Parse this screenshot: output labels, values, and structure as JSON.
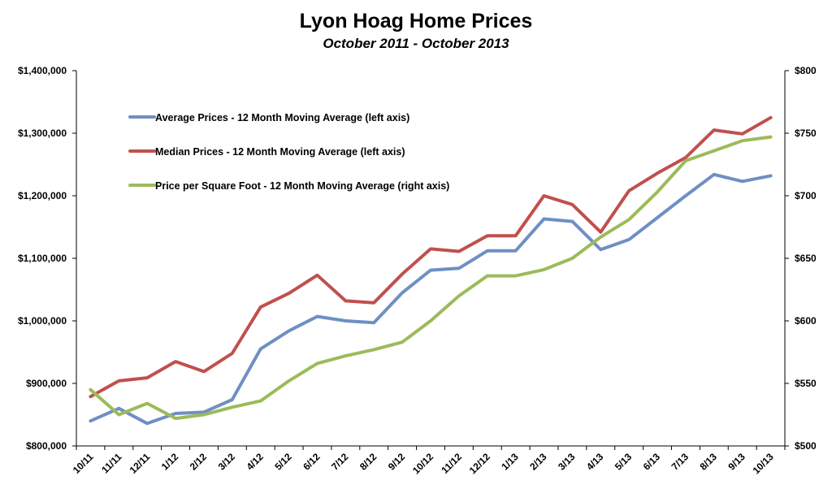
{
  "chart_data": {
    "type": "line",
    "title": "Lyon Hoag Home Prices",
    "subtitle": "October 2011 - October 2013",
    "categories": [
      "10/11",
      "11/11",
      "12/11",
      "1/12",
      "2/12",
      "3/12",
      "4/12",
      "5/12",
      "6/12",
      "7/12",
      "8/12",
      "9/12",
      "10/12",
      "11/12",
      "12/12",
      "1/13",
      "2/13",
      "3/13",
      "4/13",
      "5/13",
      "6/13",
      "7/13",
      "8/13",
      "9/13",
      "10/13"
    ],
    "left_axis": {
      "ylim": [
        800000,
        1400000
      ],
      "ticks": [
        800000,
        900000,
        1000000,
        1100000,
        1200000,
        1300000,
        1400000
      ],
      "tick_labels": [
        "$800,000",
        "$900,000",
        "$1,000,000",
        "$1,100,000",
        "$1,200,000",
        "$1,300,000",
        "$1,400,000"
      ]
    },
    "right_axis": {
      "ylim": [
        500,
        800
      ],
      "ticks": [
        500,
        550,
        600,
        650,
        700,
        750,
        800
      ],
      "tick_labels": [
        "$500",
        "$550",
        "$600",
        "$650",
        "$700",
        "$750",
        "$800"
      ]
    },
    "series": [
      {
        "name": "Average Prices - 12 Month Moving Average (left axis)",
        "axis": "left",
        "color": "#6f8fc4",
        "values": [
          840000,
          860000,
          836000,
          852000,
          854000,
          874000,
          955000,
          984000,
          1007000,
          1000000,
          997000,
          1045000,
          1081000,
          1084000,
          1112000,
          1112000,
          1163000,
          1159000,
          1114000,
          1130000,
          1165000,
          1200000,
          1234000,
          1223000,
          1232000
        ]
      },
      {
        "name": "Median Prices - 12 Month Moving Average (left axis)",
        "axis": "left",
        "color": "#c0504d",
        "values": [
          879000,
          904000,
          909000,
          935000,
          919000,
          948000,
          1022000,
          1044000,
          1073000,
          1032000,
          1029000,
          1075000,
          1115000,
          1111000,
          1136000,
          1136000,
          1200000,
          1186000,
          1142000,
          1208000,
          1236000,
          1261000,
          1305000,
          1299000,
          1325000
        ]
      },
      {
        "name": "Price per Square Foot - 12 Month Moving Average (right axis)",
        "axis": "right",
        "color": "#9bbb59",
        "values": [
          545,
          525,
          534,
          522,
          525,
          531,
          536,
          552,
          566,
          572,
          577,
          583,
          600,
          620,
          636,
          636,
          641,
          650,
          667,
          681,
          703,
          728,
          736,
          744,
          747
        ]
      }
    ],
    "legend_position": "top-left",
    "grid": false
  }
}
